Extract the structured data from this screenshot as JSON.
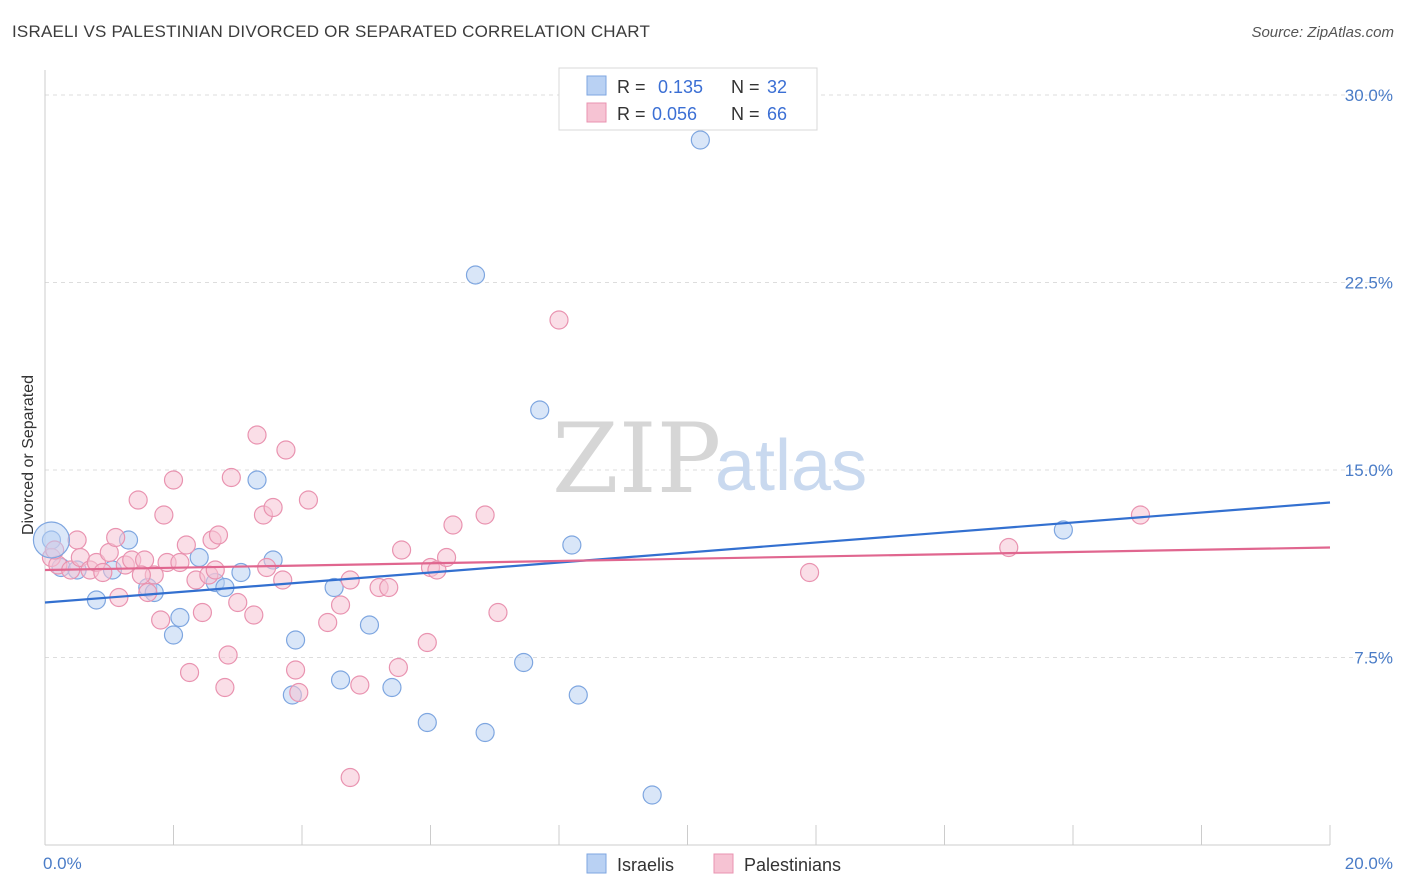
{
  "header": {
    "title": "ISRAELI VS PALESTINIAN DIVORCED OR SEPARATED CORRELATION CHART",
    "source": "Source: ZipAtlas.com"
  },
  "watermark": {
    "zip": "ZIP",
    "atlas": "atlas"
  },
  "colors": {
    "israelis_fill": "#b9d1f3",
    "israelis_stroke": "#7ea6e0",
    "israelis_line": "#3370d0",
    "palestinians_fill": "#f6c3d3",
    "palestinians_stroke": "#e993b0",
    "palestinians_line": "#e0668f",
    "tick_label": "#4a7cc7",
    "grid": "#dddddd"
  },
  "legend": {
    "rows": [
      {
        "r_label": "R =",
        "r_value": "0.135",
        "n_label": "N =",
        "n_value": "32"
      },
      {
        "r_label": "R =",
        "r_value": "0.056",
        "n_label": "N =",
        "n_value": "66"
      }
    ]
  },
  "chart_data": {
    "type": "scatter",
    "title": "ISRAELI VS PALESTINIAN DIVORCED OR SEPARATED CORRELATION CHART",
    "xlabel": "",
    "ylabel": "Divorced or Separated",
    "xlim": [
      0,
      20
    ],
    "ylim": [
      0,
      31
    ],
    "x_tick_labels": [
      "0.0%",
      "20.0%"
    ],
    "y_ticks": [
      7.5,
      15.0,
      22.5,
      30.0
    ],
    "y_tick_labels": [
      "7.5%",
      "15.0%",
      "22.5%",
      "30.0%"
    ],
    "grid": true,
    "legend_position": "top-center",
    "series": [
      {
        "name": "Israelis",
        "r": 0.135,
        "n": 32,
        "trend": {
          "x": [
            0,
            20
          ],
          "y": [
            9.7,
            13.7
          ]
        },
        "points": [
          [
            0.1,
            12.2
          ],
          [
            0.25,
            11.1
          ],
          [
            0.5,
            11.0
          ],
          [
            0.8,
            9.8
          ],
          [
            1.05,
            11.0
          ],
          [
            1.3,
            12.2
          ],
          [
            1.6,
            10.3
          ],
          [
            1.7,
            10.1
          ],
          [
            2.0,
            8.4
          ],
          [
            2.1,
            9.1
          ],
          [
            2.4,
            11.5
          ],
          [
            2.65,
            10.5
          ],
          [
            2.8,
            10.3
          ],
          [
            3.05,
            10.9
          ],
          [
            3.3,
            14.6
          ],
          [
            3.55,
            11.4
          ],
          [
            3.85,
            6.0
          ],
          [
            3.9,
            8.2
          ],
          [
            4.5,
            10.3
          ],
          [
            4.6,
            6.6
          ],
          [
            5.05,
            8.8
          ],
          [
            5.4,
            6.3
          ],
          [
            5.95,
            4.9
          ],
          [
            6.7,
            22.8
          ],
          [
            6.85,
            4.5
          ],
          [
            7.45,
            7.3
          ],
          [
            7.7,
            17.4
          ],
          [
            8.2,
            12.0
          ],
          [
            8.3,
            6.0
          ],
          [
            9.45,
            2.0
          ],
          [
            10.2,
            28.2
          ],
          [
            15.85,
            12.6
          ]
        ]
      },
      {
        "name": "Palestinians",
        "r": 0.056,
        "n": 66,
        "trend": {
          "x": [
            0,
            20
          ],
          "y": [
            11.0,
            11.9
          ]
        },
        "points": [
          [
            0.1,
            11.5
          ],
          [
            0.2,
            11.2
          ],
          [
            0.4,
            11.0
          ],
          [
            0.5,
            12.2
          ],
          [
            0.55,
            11.5
          ],
          [
            0.7,
            11.0
          ],
          [
            0.8,
            11.3
          ],
          [
            0.9,
            10.9
          ],
          [
            1.0,
            11.7
          ],
          [
            1.1,
            12.3
          ],
          [
            1.15,
            9.9
          ],
          [
            1.25,
            11.2
          ],
          [
            1.35,
            11.4
          ],
          [
            1.45,
            13.8
          ],
          [
            1.55,
            11.4
          ],
          [
            1.6,
            10.1
          ],
          [
            1.7,
            10.8
          ],
          [
            1.8,
            9.0
          ],
          [
            1.85,
            13.2
          ],
          [
            1.9,
            11.3
          ],
          [
            2.0,
            14.6
          ],
          [
            2.1,
            11.3
          ],
          [
            2.2,
            12.0
          ],
          [
            2.25,
            6.9
          ],
          [
            2.35,
            10.6
          ],
          [
            2.45,
            9.3
          ],
          [
            2.55,
            10.8
          ],
          [
            2.6,
            12.2
          ],
          [
            2.65,
            11.0
          ],
          [
            2.7,
            12.4
          ],
          [
            2.8,
            6.3
          ],
          [
            2.85,
            7.6
          ],
          [
            2.9,
            14.7
          ],
          [
            3.0,
            9.7
          ],
          [
            3.25,
            9.2
          ],
          [
            3.3,
            16.4
          ],
          [
            3.4,
            13.2
          ],
          [
            3.45,
            11.1
          ],
          [
            3.55,
            13.5
          ],
          [
            3.7,
            10.6
          ],
          [
            3.75,
            15.8
          ],
          [
            3.9,
            7.0
          ],
          [
            3.95,
            6.1
          ],
          [
            4.1,
            13.8
          ],
          [
            4.4,
            8.9
          ],
          [
            4.6,
            9.6
          ],
          [
            4.75,
            10.6
          ],
          [
            4.9,
            6.4
          ],
          [
            4.75,
            2.7
          ],
          [
            5.2,
            10.3
          ],
          [
            5.35,
            10.3
          ],
          [
            5.5,
            7.1
          ],
          [
            5.55,
            11.8
          ],
          [
            5.95,
            8.1
          ],
          [
            6.0,
            11.1
          ],
          [
            6.1,
            11.0
          ],
          [
            6.25,
            11.5
          ],
          [
            6.35,
            12.8
          ],
          [
            6.85,
            13.2
          ],
          [
            7.05,
            9.3
          ],
          [
            8.0,
            21.0
          ],
          [
            11.9,
            10.9
          ],
          [
            15.0,
            11.9
          ],
          [
            17.05,
            13.2
          ],
          [
            0.15,
            11.8
          ],
          [
            1.5,
            10.8
          ]
        ]
      }
    ]
  }
}
